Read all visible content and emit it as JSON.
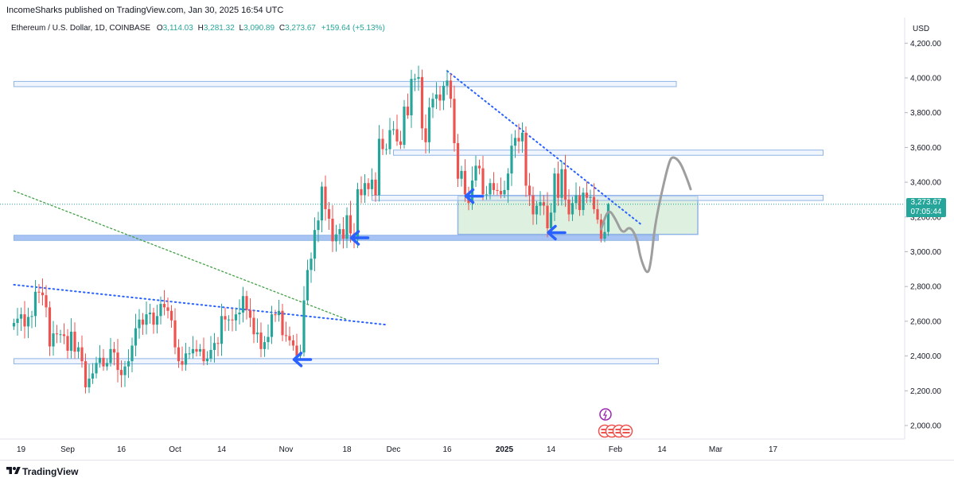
{
  "header": {
    "publisher": "IncomeSharks published on TradingView.com, Jan 30, 2025 16:54 UTC"
  },
  "legend": {
    "symbol": "Ethereum / U.S. Dollar, 1D, COINBASE",
    "open_label": "O",
    "open": "3,114.03",
    "high_label": "H",
    "high": "3,281.32",
    "low_label": "L",
    "low": "3,090.89",
    "close_label": "C",
    "close": "3,273.67",
    "change": "+159.64 (+5.13%)"
  },
  "axis": {
    "currency": "USD",
    "price_tag": "3,273.67",
    "countdown": "07:05:44"
  },
  "footer": {
    "brand": "TradingView"
  },
  "colors": {
    "up": "#26a69a",
    "down": "#ef5350",
    "trendline_blue": "#2962ff",
    "trendline_green": "#43a047",
    "zone_fill": "#c8e6c9",
    "zone_border": "#90b4e6",
    "arrow": "#2962ff",
    "projection": "#9e9e9e"
  },
  "chart_data": {
    "type": "candlestick",
    "symbol": "Ethereum / U.S. Dollar",
    "interval": "1D",
    "exchange": "COINBASE",
    "ylim": [
      1950,
      4250
    ],
    "y_ticks": [
      2000,
      2200,
      2400,
      2600,
      2800,
      3000,
      3200,
      3400,
      3600,
      3800,
      4000,
      4200
    ],
    "y_tick_labels": [
      "2,000.00",
      "2,200.00",
      "2,400.00",
      "2,600.00",
      "2,800.00",
      "3,000.00",
      "3,200.00",
      "3,400.00",
      "3,600.00",
      "3,800.00",
      "4,000.00",
      "4,200.00"
    ],
    "x_ticks": [
      {
        "date": "2024-08-19",
        "label": "19"
      },
      {
        "date": "2024-09-01",
        "label": "Sep"
      },
      {
        "date": "2024-09-16",
        "label": "16"
      },
      {
        "date": "2024-10-01",
        "label": "Oct"
      },
      {
        "date": "2024-10-14",
        "label": "14"
      },
      {
        "date": "2024-11-01",
        "label": "Nov"
      },
      {
        "date": "2024-11-18",
        "label": "18"
      },
      {
        "date": "2024-12-01",
        "label": "Dec"
      },
      {
        "date": "2024-12-16",
        "label": "16"
      },
      {
        "date": "2025-01-01",
        "label": "2025"
      },
      {
        "date": "2025-01-14",
        "label": "14"
      },
      {
        "date": "2025-02-01",
        "label": "Feb"
      },
      {
        "date": "2025-02-14",
        "label": "14"
      },
      {
        "date": "2025-03-01",
        "label": "Mar"
      },
      {
        "date": "2025-03-17",
        "label": "17"
      }
    ],
    "last_close": 3273.67,
    "closes": [
      {
        "date": "2024-08-17",
        "close": 2590
      },
      {
        "date": "2024-08-18",
        "close": 2615
      },
      {
        "date": "2024-08-19",
        "close": 2640
      },
      {
        "date": "2024-08-20",
        "close": 2570
      },
      {
        "date": "2024-08-21",
        "close": 2625
      },
      {
        "date": "2024-08-22",
        "close": 2630
      },
      {
        "date": "2024-08-23",
        "close": 2770
      },
      {
        "date": "2024-08-24",
        "close": 2765
      },
      {
        "date": "2024-08-25",
        "close": 2750
      },
      {
        "date": "2024-08-26",
        "close": 2680
      },
      {
        "date": "2024-08-27",
        "close": 2455
      },
      {
        "date": "2024-08-28",
        "close": 2530
      },
      {
        "date": "2024-08-29",
        "close": 2525
      },
      {
        "date": "2024-08-30",
        "close": 2525
      },
      {
        "date": "2024-08-31",
        "close": 2515
      },
      {
        "date": "2024-09-01",
        "close": 2430
      },
      {
        "date": "2024-09-02",
        "close": 2540
      },
      {
        "date": "2024-09-03",
        "close": 2425
      },
      {
        "date": "2024-09-04",
        "close": 2450
      },
      {
        "date": "2024-09-05",
        "close": 2370
      },
      {
        "date": "2024-09-06",
        "close": 2220
      },
      {
        "date": "2024-09-07",
        "close": 2270
      },
      {
        "date": "2024-09-08",
        "close": 2300
      },
      {
        "date": "2024-09-09",
        "close": 2360
      },
      {
        "date": "2024-09-10",
        "close": 2390
      },
      {
        "date": "2024-09-11",
        "close": 2340
      },
      {
        "date": "2024-09-12",
        "close": 2360
      },
      {
        "date": "2024-09-13",
        "close": 2440
      },
      {
        "date": "2024-09-14",
        "close": 2420
      },
      {
        "date": "2024-09-15",
        "close": 2320
      },
      {
        "date": "2024-09-16",
        "close": 2290
      },
      {
        "date": "2024-09-17",
        "close": 2340
      },
      {
        "date": "2024-09-18",
        "close": 2370
      },
      {
        "date": "2024-09-19",
        "close": 2460
      },
      {
        "date": "2024-09-20",
        "close": 2560
      },
      {
        "date": "2024-09-21",
        "close": 2610
      },
      {
        "date": "2024-09-22",
        "close": 2580
      },
      {
        "date": "2024-09-23",
        "close": 2640
      },
      {
        "date": "2024-09-24",
        "close": 2650
      },
      {
        "date": "2024-09-25",
        "close": 2580
      },
      {
        "date": "2024-09-26",
        "close": 2630
      },
      {
        "date": "2024-09-27",
        "close": 2700
      },
      {
        "date": "2024-09-28",
        "close": 2680
      },
      {
        "date": "2024-09-29",
        "close": 2660
      },
      {
        "date": "2024-09-30",
        "close": 2605
      },
      {
        "date": "2024-10-01",
        "close": 2450
      },
      {
        "date": "2024-10-02",
        "close": 2370
      },
      {
        "date": "2024-10-03",
        "close": 2350
      },
      {
        "date": "2024-10-04",
        "close": 2415
      },
      {
        "date": "2024-10-05",
        "close": 2415
      },
      {
        "date": "2024-10-06",
        "close": 2440
      },
      {
        "date": "2024-10-07",
        "close": 2425
      },
      {
        "date": "2024-10-08",
        "close": 2440
      },
      {
        "date": "2024-10-09",
        "close": 2370
      },
      {
        "date": "2024-10-10",
        "close": 2385
      },
      {
        "date": "2024-10-11",
        "close": 2435
      },
      {
        "date": "2024-10-12",
        "close": 2475
      },
      {
        "date": "2024-10-13",
        "close": 2470
      },
      {
        "date": "2024-10-14",
        "close": 2630
      },
      {
        "date": "2024-10-15",
        "close": 2610
      },
      {
        "date": "2024-10-16",
        "close": 2610
      },
      {
        "date": "2024-10-17",
        "close": 2605
      },
      {
        "date": "2024-10-18",
        "close": 2640
      },
      {
        "date": "2024-10-19",
        "close": 2650
      },
      {
        "date": "2024-10-20",
        "close": 2745
      },
      {
        "date": "2024-10-21",
        "close": 2665
      },
      {
        "date": "2024-10-22",
        "close": 2620
      },
      {
        "date": "2024-10-23",
        "close": 2525
      },
      {
        "date": "2024-10-24",
        "close": 2535
      },
      {
        "date": "2024-10-25",
        "close": 2440
      },
      {
        "date": "2024-10-26",
        "close": 2480
      },
      {
        "date": "2024-10-27",
        "close": 2510
      },
      {
        "date": "2024-10-28",
        "close": 2640
      },
      {
        "date": "2024-10-29",
        "close": 2635
      },
      {
        "date": "2024-10-30",
        "close": 2660
      },
      {
        "date": "2024-10-31",
        "close": 2520
      },
      {
        "date": "2024-11-01",
        "close": 2515
      },
      {
        "date": "2024-11-02",
        "close": 2490
      },
      {
        "date": "2024-11-03",
        "close": 2460
      },
      {
        "date": "2024-11-04",
        "close": 2400
      },
      {
        "date": "2024-11-05",
        "close": 2420
      },
      {
        "date": "2024-11-06",
        "close": 2720
      },
      {
        "date": "2024-11-07",
        "close": 2895
      },
      {
        "date": "2024-11-08",
        "close": 2960
      },
      {
        "date": "2024-11-09",
        "close": 3125
      },
      {
        "date": "2024-11-10",
        "close": 3180
      },
      {
        "date": "2024-11-11",
        "close": 3375
      },
      {
        "date": "2024-11-12",
        "close": 3245
      },
      {
        "date": "2024-11-13",
        "close": 3190
      },
      {
        "date": "2024-11-14",
        "close": 3060
      },
      {
        "date": "2024-11-15",
        "close": 3100
      },
      {
        "date": "2024-11-16",
        "close": 3130
      },
      {
        "date": "2024-11-17",
        "close": 3075
      },
      {
        "date": "2024-11-18",
        "close": 3210
      },
      {
        "date": "2024-11-19",
        "close": 3105
      },
      {
        "date": "2024-11-20",
        "close": 3070
      },
      {
        "date": "2024-11-21",
        "close": 3360
      },
      {
        "date": "2024-11-22",
        "close": 3325
      },
      {
        "date": "2024-11-23",
        "close": 3395
      },
      {
        "date": "2024-11-24",
        "close": 3360
      },
      {
        "date": "2024-11-25",
        "close": 3415
      },
      {
        "date": "2024-11-26",
        "close": 3325
      },
      {
        "date": "2024-11-27",
        "close": 3650
      },
      {
        "date": "2024-11-28",
        "close": 3590
      },
      {
        "date": "2024-11-29",
        "close": 3590
      },
      {
        "date": "2024-11-30",
        "close": 3700
      },
      {
        "date": "2024-12-01",
        "close": 3705
      },
      {
        "date": "2024-12-02",
        "close": 3635
      },
      {
        "date": "2024-12-03",
        "close": 3615
      },
      {
        "date": "2024-12-04",
        "close": 3835
      },
      {
        "date": "2024-12-05",
        "close": 3785
      },
      {
        "date": "2024-12-06",
        "close": 3995
      },
      {
        "date": "2024-12-07",
        "close": 3995
      },
      {
        "date": "2024-12-08",
        "close": 4005
      },
      {
        "date": "2024-12-09",
        "close": 3710
      },
      {
        "date": "2024-12-10",
        "close": 3630
      },
      {
        "date": "2024-12-11",
        "close": 3830
      },
      {
        "date": "2024-12-12",
        "close": 3880
      },
      {
        "date": "2024-12-13",
        "close": 3905
      },
      {
        "date": "2024-12-14",
        "close": 3870
      },
      {
        "date": "2024-12-15",
        "close": 3955
      },
      {
        "date": "2024-12-16",
        "close": 3985
      },
      {
        "date": "2024-12-17",
        "close": 3880
      },
      {
        "date": "2024-12-18",
        "close": 3625
      },
      {
        "date": "2024-12-19",
        "close": 3420
      },
      {
        "date": "2024-12-20",
        "close": 3465
      },
      {
        "date": "2024-12-21",
        "close": 3330
      },
      {
        "date": "2024-12-22",
        "close": 3280
      },
      {
        "date": "2024-12-23",
        "close": 3410
      },
      {
        "date": "2024-12-24",
        "close": 3495
      },
      {
        "date": "2024-12-25",
        "close": 3480
      },
      {
        "date": "2024-12-26",
        "close": 3330
      },
      {
        "date": "2024-12-27",
        "close": 3330
      },
      {
        "date": "2024-12-28",
        "close": 3395
      },
      {
        "date": "2024-12-29",
        "close": 3355
      },
      {
        "date": "2024-12-30",
        "close": 3350
      },
      {
        "date": "2024-12-31",
        "close": 3330
      },
      {
        "date": "2025-01-01",
        "close": 3355
      },
      {
        "date": "2025-01-02",
        "close": 3450
      },
      {
        "date": "2025-01-03",
        "close": 3610
      },
      {
        "date": "2025-01-04",
        "close": 3655
      },
      {
        "date": "2025-01-05",
        "close": 3635
      },
      {
        "date": "2025-01-06",
        "close": 3685
      },
      {
        "date": "2025-01-07",
        "close": 3380
      },
      {
        "date": "2025-01-08",
        "close": 3325
      },
      {
        "date": "2025-01-09",
        "close": 3215
      },
      {
        "date": "2025-01-10",
        "close": 3265
      },
      {
        "date": "2025-01-11",
        "close": 3285
      },
      {
        "date": "2025-01-12",
        "close": 3265
      },
      {
        "date": "2025-01-13",
        "close": 3135
      },
      {
        "date": "2025-01-14",
        "close": 3225
      },
      {
        "date": "2025-01-15",
        "close": 3450
      },
      {
        "date": "2025-01-16",
        "close": 3310
      },
      {
        "date": "2025-01-17",
        "close": 3475
      },
      {
        "date": "2025-01-18",
        "close": 3300
      },
      {
        "date": "2025-01-19",
        "close": 3215
      },
      {
        "date": "2025-01-20",
        "close": 3280
      },
      {
        "date": "2025-01-21",
        "close": 3325
      },
      {
        "date": "2025-01-22",
        "close": 3240
      },
      {
        "date": "2025-01-23",
        "close": 3340
      },
      {
        "date": "2025-01-24",
        "close": 3310
      },
      {
        "date": "2025-01-25",
        "close": 3315
      },
      {
        "date": "2025-01-26",
        "close": 3245
      },
      {
        "date": "2025-01-27",
        "close": 3185
      },
      {
        "date": "2025-01-28",
        "close": 3075
      },
      {
        "date": "2025-01-29",
        "close": 3114
      },
      {
        "date": "2025-01-30",
        "close": 3274
      }
    ],
    "drawings": {
      "horizontal_bands": [
        {
          "from": "2024-08-17",
          "to": "2025-02-18",
          "price_low": 3950,
          "price_high": 3980
        },
        {
          "from": "2024-12-01",
          "to": "2025-03-31",
          "price_low": 3555,
          "price_high": 3585
        },
        {
          "from": "2024-11-25",
          "to": "2025-03-31",
          "price_low": 3295,
          "price_high": 3325
        },
        {
          "from": "2024-08-17",
          "to": "2025-02-13",
          "price_low": 3065,
          "price_high": 3095
        },
        {
          "from": "2024-08-17",
          "to": "2025-02-13",
          "price_low": 2355,
          "price_high": 2385
        }
      ],
      "zone": {
        "from": "2024-12-19",
        "to": "2025-02-24",
        "price_low": 3100,
        "price_high": 3320
      },
      "trendlines": [
        {
          "style": "dotted-blue",
          "from": {
            "date": "2024-12-16",
            "price": 4040
          },
          "to": {
            "date": "2025-02-08",
            "price": 3160
          }
        },
        {
          "style": "dotted-blue",
          "from": {
            "date": "2024-08-17",
            "price": 2810
          },
          "to": {
            "date": "2024-11-29",
            "price": 2580
          }
        },
        {
          "style": "dotted-green",
          "from": {
            "date": "2024-08-17",
            "price": 3350
          },
          "to": {
            "date": "2024-11-18",
            "price": 2610
          }
        }
      ],
      "arrows": [
        {
          "date": "2024-11-03",
          "price": 2380
        },
        {
          "date": "2024-11-19",
          "price": 3080
        },
        {
          "date": "2024-12-21",
          "price": 3320
        },
        {
          "date": "2025-01-13",
          "price": 3110
        }
      ],
      "projection_path": [
        {
          "date": "2025-01-28",
          "price": 3130
        },
        {
          "date": "2025-01-30",
          "price": 3250
        },
        {
          "date": "2025-02-01",
          "price": 3190
        },
        {
          "date": "2025-02-03",
          "price": 3100
        },
        {
          "date": "2025-02-05",
          "price": 3150
        },
        {
          "date": "2025-02-07",
          "price": 3080
        },
        {
          "date": "2025-02-08",
          "price": 2960
        },
        {
          "date": "2025-02-10",
          "price": 2860
        },
        {
          "date": "2025-02-11",
          "price": 2950
        },
        {
          "date": "2025-02-12",
          "price": 3150
        },
        {
          "date": "2025-02-14",
          "price": 3350
        },
        {
          "date": "2025-02-16",
          "price": 3520
        },
        {
          "date": "2025-02-17",
          "price": 3550
        },
        {
          "date": "2025-02-19",
          "price": 3520
        },
        {
          "date": "2025-02-21",
          "price": 3420
        },
        {
          "date": "2025-02-22",
          "price": 3360
        }
      ]
    }
  }
}
